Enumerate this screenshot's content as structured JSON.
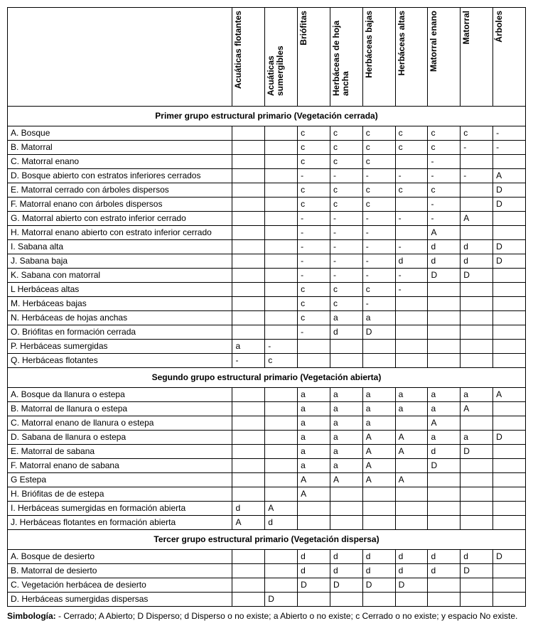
{
  "columns": [
    "Acuáticas flotantes",
    "Acuáticas sumergibles",
    "Briófitas",
    "Herbáceas de hoja ancha",
    "Herbáceas bajas",
    "Herbáceas altas",
    "Matorral enano",
    "Matorral",
    "Árboles"
  ],
  "col_widths": {
    "label": 290,
    "val": 42
  },
  "sections": [
    {
      "title": "Primer grupo estructural primario (Vegetación cerrada)",
      "rows": [
        {
          "label": "A. Bosque",
          "cells": [
            "",
            "",
            "c",
            "c",
            "c",
            "c",
            "c",
            "c",
            "-"
          ]
        },
        {
          "label": "B. Matorral",
          "cells": [
            "",
            "",
            "c",
            "c",
            "c",
            "c",
            "c",
            "-",
            "-"
          ]
        },
        {
          "label": "C. Matorral enano",
          "cells": [
            "",
            "",
            "c",
            "c",
            "c",
            "",
            "-",
            "",
            ""
          ]
        },
        {
          "label": "D. Bosque abierto con estratos inferiores cerrados",
          "cells": [
            "",
            "",
            "-",
            "-",
            "-",
            "-",
            "-",
            "-",
            "A"
          ]
        },
        {
          "label": "E. Matorral cerrado con árboles dispersos",
          "cells": [
            "",
            "",
            "c",
            "c",
            "c",
            "c",
            "c",
            "",
            "D"
          ]
        },
        {
          "label": "F. Matorral enano con árboles dispersos",
          "cells": [
            "",
            "",
            "c",
            "c",
            "c",
            "",
            "-",
            "",
            "D"
          ]
        },
        {
          "label": "G. Matorral abierto con estrato inferior cerrado",
          "cells": [
            "",
            "",
            "-",
            "-",
            "-",
            "-",
            "-",
            "A",
            ""
          ]
        },
        {
          "label": "H. Matorral enano abierto con estrato inferior cerrado",
          "cells": [
            "",
            "",
            "-",
            "-",
            "-",
            "",
            "A",
            "",
            ""
          ]
        },
        {
          "label": "I. Sabana alta",
          "cells": [
            "",
            "",
            "-",
            "-",
            "-",
            "-",
            "d",
            "d",
            "D"
          ]
        },
        {
          "label": "J. Sabana baja",
          "cells": [
            "",
            "",
            "-",
            "-",
            "-",
            "d",
            "d",
            "d",
            "D"
          ]
        },
        {
          "label": "K. Sabana con matorral",
          "cells": [
            "",
            "",
            "-",
            "-",
            "-",
            "-",
            "D",
            "D",
            ""
          ]
        },
        {
          "label": "L Herbáceas altas",
          "cells": [
            "",
            "",
            "c",
            "c",
            "c",
            "-",
            "",
            "",
            ""
          ]
        },
        {
          "label": "M. Herbáceas bajas",
          "cells": [
            "",
            "",
            "c",
            "c",
            "-",
            "",
            "",
            "",
            ""
          ]
        },
        {
          "label": "N. Herbáceas de hojas anchas",
          "cells": [
            "",
            "",
            "c",
            "a",
            "a",
            "",
            "",
            "",
            ""
          ]
        },
        {
          "label": "O. Briófitas en formación cerrada",
          "cells": [
            "",
            "",
            "-",
            "d",
            "D",
            "",
            "",
            "",
            ""
          ]
        },
        {
          "label": "P. Herbáceas sumergidas",
          "cells": [
            "a",
            "-",
            "",
            "",
            "",
            "",
            "",
            "",
            ""
          ]
        },
        {
          "label": "Q. Herbáceas flotantes",
          "cells": [
            "-",
            "c",
            "",
            "",
            "",
            "",
            "",
            "",
            ""
          ]
        }
      ]
    },
    {
      "title": "Segundo grupo estructural primario (Vegetación abierta)",
      "rows": [
        {
          "label": "A. Bosque da llanura o estepa",
          "cells": [
            "",
            "",
            "a",
            "a",
            "a",
            "a",
            "a",
            "a",
            "A"
          ]
        },
        {
          "label": "B. Matorral de llanura o estepa",
          "cells": [
            "",
            "",
            "a",
            "a",
            "a",
            "a",
            "a",
            "A",
            ""
          ]
        },
        {
          "label": "C. Matorral enano de llanura o estepa",
          "cells": [
            "",
            "",
            "a",
            "a",
            "a",
            "",
            "A",
            "",
            ""
          ]
        },
        {
          "label": "D. Sabana de llanura o estepa",
          "cells": [
            "",
            "",
            "a",
            "a",
            "A",
            "A",
            "a",
            "a",
            "D"
          ]
        },
        {
          "label": "E. Matorral de sabana",
          "cells": [
            "",
            "",
            "a",
            "a",
            "A",
            "A",
            "d",
            "D",
            ""
          ]
        },
        {
          "label": "F. Matorral enano de sabana",
          "cells": [
            "",
            "",
            "a",
            "a",
            "A",
            "",
            "D",
            "",
            ""
          ]
        },
        {
          "label": "G Estepa",
          "cells": [
            "",
            "",
            "A",
            "A",
            "A",
            "A",
            "",
            "",
            ""
          ]
        },
        {
          "label": "H. Briófitas de de estepa",
          "cells": [
            "",
            "",
            "A",
            "",
            "",
            "",
            "",
            "",
            ""
          ]
        },
        {
          "label": "I. Herbáceas sumergidas en formación abierta",
          "cells": [
            "d",
            "A",
            "",
            "",
            "",
            "",
            "",
            "",
            ""
          ]
        },
        {
          "label": "J. Herbáceas flotantes en formación abierta",
          "cells": [
            "A",
            "d",
            "",
            "",
            "",
            "",
            "",
            "",
            ""
          ]
        }
      ]
    },
    {
      "title": "Tercer grupo estructural primario (Vegetación dispersa)",
      "rows": [
        {
          "label": "A. Bosque de desierto",
          "cells": [
            "",
            "",
            "d",
            "d",
            "d",
            "d",
            "d",
            "d",
            "D"
          ]
        },
        {
          "label": "B. Matorral de desierto",
          "cells": [
            "",
            "",
            "d",
            "d",
            "d",
            "d",
            "d",
            "D",
            ""
          ]
        },
        {
          "label": "C. Vegetación herbácea de desierto",
          "cells": [
            "",
            "",
            "D",
            "D",
            "D",
            "D",
            "",
            "",
            ""
          ]
        },
        {
          "label": "D. Herbáceas sumergidas dispersas",
          "cells": [
            "",
            "D",
            "",
            "",
            "",
            "",
            "",
            "",
            ""
          ]
        }
      ]
    }
  ],
  "legend": {
    "label": "Simbología:",
    "text": " - Cerrado; A Abierto; D Disperso; d Disperso o no existe; a Abierto o no existe; c Cerrado o no existe; y espacio No existe."
  }
}
